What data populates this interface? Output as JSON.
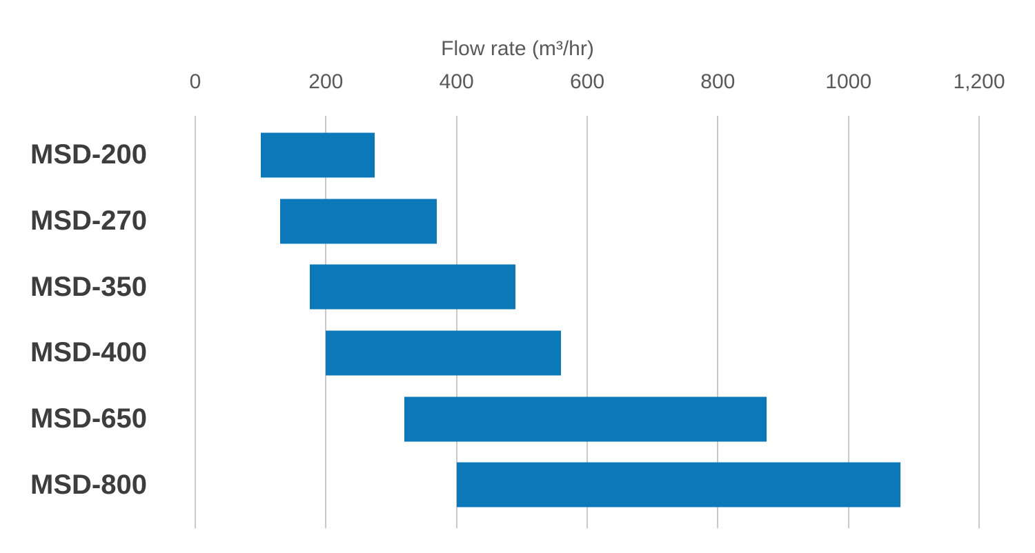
{
  "chart_data": {
    "type": "bar",
    "subtype": "horizontal-range-bars",
    "title": "Flow rate (m³/hr)",
    "xlabel": "Flow rate (m³/hr)",
    "ylabel": "",
    "axis_position": "top",
    "categories": [
      "MSD-200",
      "MSD-270",
      "MSD-350",
      "MSD-400",
      "MSD-650",
      "MSD-800"
    ],
    "series": [
      {
        "name": "Flow rate range (m³/hr)",
        "ranges": [
          [
            100,
            275
          ],
          [
            130,
            370
          ],
          [
            175,
            490
          ],
          [
            200,
            560
          ],
          [
            320,
            875
          ],
          [
            400,
            1080
          ]
        ]
      }
    ],
    "xlim": [
      0,
      1200
    ],
    "xticks": [
      {
        "value": 0,
        "label": "0"
      },
      {
        "value": 200,
        "label": "200"
      },
      {
        "value": 400,
        "label": "400"
      },
      {
        "value": 600,
        "label": "600"
      },
      {
        "value": 800,
        "label": "800"
      },
      {
        "value": 1000,
        "label": "1000"
      },
      {
        "value": 1200,
        "label": "1,200"
      }
    ],
    "grid": "vertical-only",
    "legend": "none",
    "colors": {
      "bar": "#0b78ba",
      "gridline": "#c9c9c9",
      "tick_text": "#595959",
      "title_text": "#595959",
      "category_text": "#3d3d3d",
      "background": "#ffffff"
    }
  }
}
